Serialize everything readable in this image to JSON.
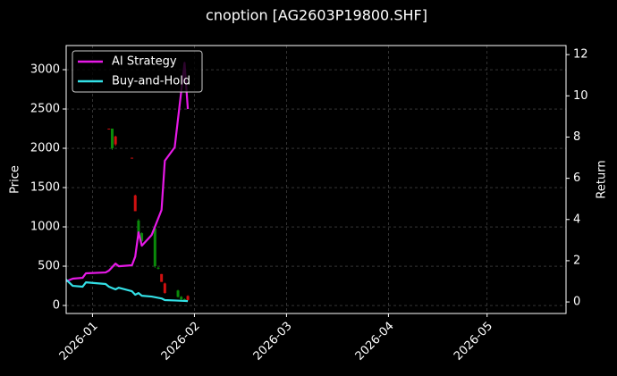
{
  "chart_data": {
    "type": "candlestick",
    "title": "cnoption [AG2603P19800.SHF]",
    "ylabel": "Price",
    "y2label": "Return",
    "x": [
      "2025-12-24",
      "2025-12-26",
      "2025-12-29",
      "2025-12-30",
      "2026-01-05",
      "2026-01-06",
      "2026-01-08",
      "2026-01-09",
      "2026-01-13",
      "2026-01-14",
      "2026-01-15",
      "2026-01-16",
      "2026-01-19",
      "2026-01-22",
      "2026-01-23",
      "2026-01-26",
      "2026-01-29",
      "2026-01-30"
    ],
    "series": [
      {
        "name": "AI Strategy",
        "color": "#e619e6",
        "axis": "y2",
        "values": [
          1.0,
          1.13,
          1.17,
          1.39,
          1.43,
          1.52,
          1.86,
          1.73,
          1.78,
          2.2,
          3.38,
          2.73,
          3.25,
          4.46,
          6.85,
          7.5,
          11.6,
          9.36
        ]
      },
      {
        "name": "Buy-and-Hold",
        "color": "#33e0e6",
        "axis": "y2",
        "values": [
          1.08,
          0.78,
          0.74,
          0.95,
          0.87,
          0.74,
          0.61,
          0.69,
          0.52,
          0.35,
          0.43,
          0.3,
          0.26,
          0.17,
          0.09,
          0.07,
          0.05,
          0.04
        ]
      }
    ],
    "candles": {
      "x": [
        "2026-01-06",
        "2026-01-07",
        "2026-01-08",
        "2026-01-13",
        "2026-01-14",
        "2026-01-15",
        "2026-01-16",
        "2026-01-20",
        "2026-01-21",
        "2026-01-22",
        "2026-01-23",
        "2026-01-27",
        "2026-01-28",
        "2026-01-29",
        "2026-01-30"
      ],
      "open": [
        2250,
        2000,
        2150,
        1880,
        1400,
        900,
        820,
        500,
        470,
        400,
        280,
        110,
        80,
        60,
        120
      ],
      "high": [
        2250,
        2250,
        2160,
        1880,
        1410,
        1100,
        930,
        1000,
        490,
        400,
        290,
        200,
        120,
        90,
        130
      ],
      "low": [
        2240,
        1980,
        2030,
        1870,
        1200,
        880,
        800,
        480,
        460,
        300,
        150,
        100,
        70,
        50,
        60
      ],
      "close": [
        2240,
        2250,
        2050,
        1870,
        1200,
        1080,
        920,
        980,
        480,
        300,
        160,
        190,
        110,
        80,
        70
      ],
      "up_color": "#0a8a0a",
      "down_color": "#d01010"
    },
    "xlim": [
      "2025-12-24",
      "2026-05-25"
    ],
    "xticks": [
      "2026-01",
      "2026-02",
      "2026-03",
      "2026-04",
      "2026-05"
    ],
    "ylim": [
      -102,
      3307
    ],
    "yticks": [
      0,
      500,
      1000,
      1500,
      2000,
      2500,
      3000
    ],
    "y2lim": [
      -0.56,
      12.44
    ],
    "y2ticks": [
      0,
      2,
      4,
      6,
      8,
      10,
      12
    ],
    "grid": true,
    "legend": "upper left"
  }
}
